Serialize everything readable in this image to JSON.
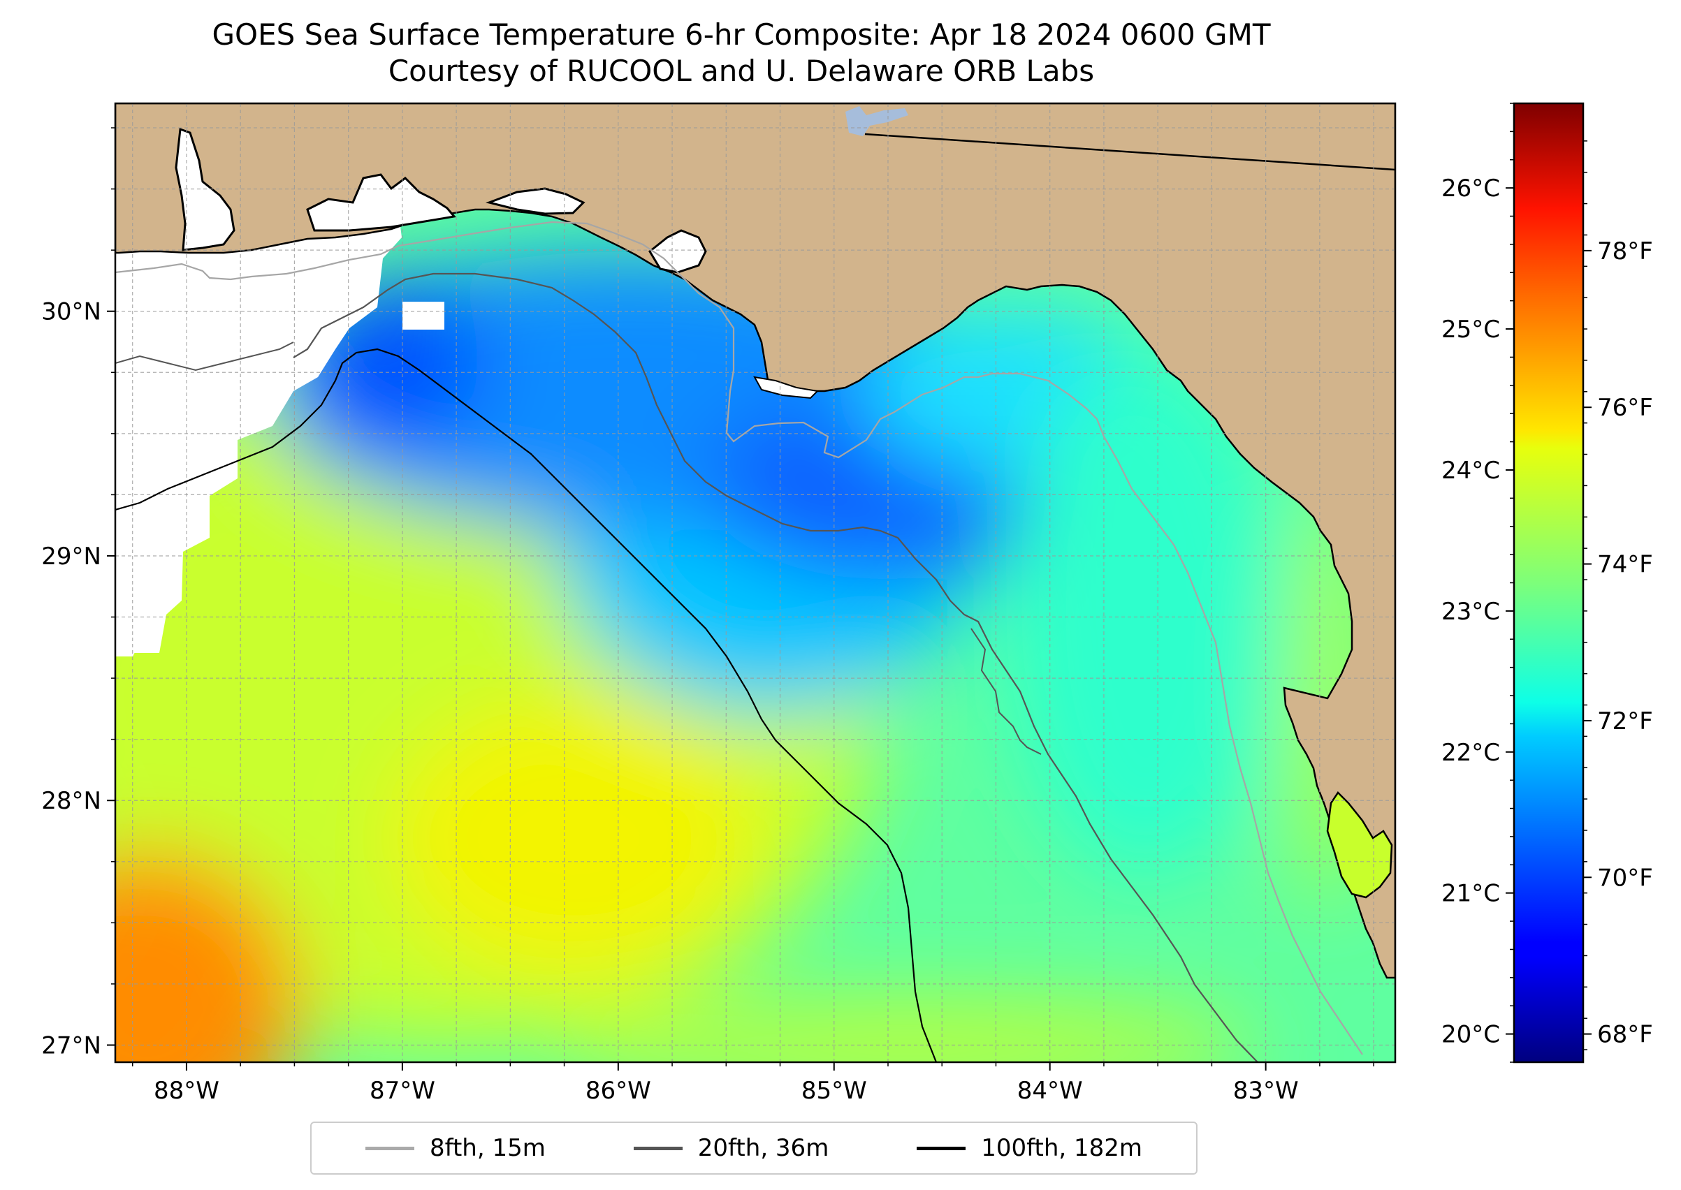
{
  "title": {
    "line1": "GOES Sea Surface Temperature 6-hr Composite: Apr 18 2024 0600 GMT",
    "line2": "Courtesy of RUCOOL and U. Delaware ORB Labs"
  },
  "map": {
    "lon_range": [
      -88.33,
      -82.4
    ],
    "lat_range": [
      26.93,
      30.85
    ],
    "x_ticks": [
      {
        "value": -88,
        "label": "88°W"
      },
      {
        "value": -87,
        "label": "87°W"
      },
      {
        "value": -86,
        "label": "86°W"
      },
      {
        "value": -85,
        "label": "85°W"
      },
      {
        "value": -84,
        "label": "84°W"
      },
      {
        "value": -83,
        "label": "83°W"
      }
    ],
    "y_ticks": [
      {
        "value": 27,
        "label": "27°N"
      },
      {
        "value": 28,
        "label": "28°N"
      },
      {
        "value": 29,
        "label": "29°N"
      },
      {
        "value": 30,
        "label": "30°N"
      }
    ],
    "gridlines": true,
    "minor_grid_step_deg": 0.25,
    "colors": {
      "land": "#d2b48c",
      "water_body": "#a6bddb",
      "no_data": "#ffffff",
      "coastline": "#000000",
      "gridline": "#9a9a9a"
    }
  },
  "legend": {
    "items": [
      {
        "label": "8fth, 15m",
        "color": "#aaaaaa"
      },
      {
        "label": "20fth, 36m",
        "color": "#555555"
      },
      {
        "label": "100fth, 182m",
        "color": "#000000"
      }
    ]
  },
  "colorbar": {
    "colormap": "jet",
    "celsius_range": [
      19.8,
      26.6
    ],
    "celsius_ticks": [
      {
        "value": 20,
        "label": "20°C"
      },
      {
        "value": 21,
        "label": "21°C"
      },
      {
        "value": 22,
        "label": "22°C"
      },
      {
        "value": 23,
        "label": "23°C"
      },
      {
        "value": 24,
        "label": "24°C"
      },
      {
        "value": 25,
        "label": "25°C"
      },
      {
        "value": 26,
        "label": "26°C"
      }
    ],
    "fahrenheit_ticks": [
      {
        "value": 68,
        "label": "68°F"
      },
      {
        "value": 70,
        "label": "70°F"
      },
      {
        "value": 72,
        "label": "72°F"
      },
      {
        "value": 74,
        "label": "74°F"
      },
      {
        "value": 76,
        "label": "76°F"
      },
      {
        "value": 78,
        "label": "78°F"
      }
    ]
  }
}
